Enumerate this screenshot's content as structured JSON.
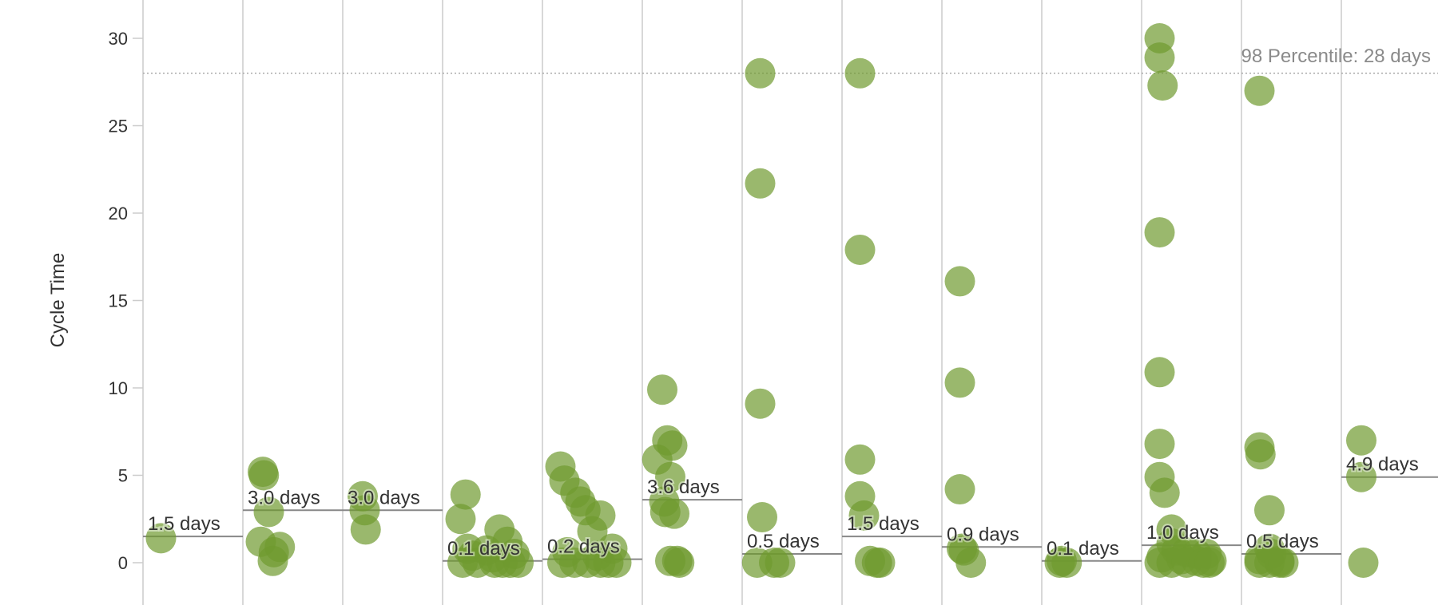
{
  "chart_data": {
    "type": "scatter",
    "title": "",
    "xlabel": "",
    "ylabel": "Cycle Time",
    "ylim": [
      -1,
      33
    ],
    "yticks": [
      0,
      5,
      10,
      15,
      20,
      25,
      30
    ],
    "grid": true,
    "colors": {
      "point": "#6f9a2f",
      "median_line": "#888888",
      "percentile_line": "#aaaaaa",
      "column_divider": "#d8d8d8",
      "tick": "#cccccc"
    },
    "percentile": {
      "value": 28,
      "label": "98 Percentile: 28 days"
    },
    "columns": [
      {
        "median": 1.5,
        "median_label": "1.5 days",
        "points": [
          [
            0.18,
            1.4
          ]
        ]
      },
      {
        "median": 3.0,
        "median_label": "3.0 days",
        "points": [
          [
            0.2,
            5.2
          ],
          [
            0.21,
            5.0
          ],
          [
            0.26,
            2.9
          ],
          [
            0.18,
            1.2
          ],
          [
            0.37,
            0.9
          ],
          [
            0.31,
            0.6
          ],
          [
            0.3,
            0.1
          ]
        ]
      },
      {
        "median": 3.0,
        "median_label": "3.0 days",
        "points": [
          [
            0.2,
            3.8
          ],
          [
            0.22,
            3.0
          ],
          [
            0.23,
            1.9
          ]
        ]
      },
      {
        "median": 0.1,
        "median_label": "0.1 days",
        "points": [
          [
            0.23,
            3.9
          ],
          [
            0.18,
            2.5
          ],
          [
            0.57,
            1.9
          ],
          [
            0.65,
            1.2
          ],
          [
            0.25,
            0.8
          ],
          [
            0.44,
            0.7
          ],
          [
            0.72,
            0.5
          ],
          [
            0.3,
            0.4
          ],
          [
            0.5,
            0.3
          ],
          [
            0.2,
            0.0
          ],
          [
            0.35,
            0.0
          ],
          [
            0.52,
            0.0
          ],
          [
            0.6,
            0.0
          ],
          [
            0.68,
            0.0
          ],
          [
            0.76,
            0.0
          ]
        ]
      },
      {
        "median": 0.2,
        "median_label": "0.2 days",
        "points": [
          [
            0.18,
            5.5
          ],
          [
            0.22,
            4.7
          ],
          [
            0.33,
            4.0
          ],
          [
            0.38,
            3.5
          ],
          [
            0.43,
            3.0
          ],
          [
            0.58,
            2.7
          ],
          [
            0.5,
            1.8
          ],
          [
            0.7,
            0.8
          ],
          [
            0.25,
            0.6
          ],
          [
            0.55,
            0.4
          ],
          [
            0.2,
            0.0
          ],
          [
            0.32,
            0.0
          ],
          [
            0.45,
            0.0
          ],
          [
            0.58,
            0.0
          ],
          [
            0.66,
            0.0
          ],
          [
            0.74,
            0.0
          ]
        ]
      },
      {
        "median": 3.6,
        "median_label": "3.6 days",
        "points": [
          [
            0.2,
            9.9
          ],
          [
            0.25,
            7.0
          ],
          [
            0.3,
            6.7
          ],
          [
            0.15,
            5.9
          ],
          [
            0.28,
            4.9
          ],
          [
            0.22,
            3.5
          ],
          [
            0.23,
            2.9
          ],
          [
            0.32,
            2.8
          ],
          [
            0.28,
            0.1
          ],
          [
            0.35,
            0.1
          ],
          [
            0.37,
            0.0
          ]
        ]
      },
      {
        "median": 0.5,
        "median_label": "0.5 days",
        "points": [
          [
            0.18,
            28.0
          ],
          [
            0.18,
            21.7
          ],
          [
            0.18,
            9.1
          ],
          [
            0.2,
            2.6
          ],
          [
            0.15,
            0.0
          ],
          [
            0.32,
            0.0
          ],
          [
            0.38,
            0.0
          ]
        ]
      },
      {
        "median": 1.5,
        "median_label": "1.5 days",
        "points": [
          [
            0.18,
            28.0
          ],
          [
            0.18,
            17.9
          ],
          [
            0.18,
            5.9
          ],
          [
            0.18,
            3.8
          ],
          [
            0.22,
            2.7
          ],
          [
            0.28,
            0.1
          ],
          [
            0.35,
            0.0
          ],
          [
            0.38,
            0.0
          ]
        ]
      },
      {
        "median": 0.9,
        "median_label": "0.9 days",
        "points": [
          [
            0.18,
            16.1
          ],
          [
            0.18,
            10.3
          ],
          [
            0.18,
            4.2
          ],
          [
            0.2,
            0.8
          ],
          [
            0.22,
            0.7
          ],
          [
            0.29,
            0.0
          ]
        ]
      },
      {
        "median": 0.1,
        "median_label": "0.1 days",
        "points": [
          [
            0.2,
            0.1
          ],
          [
            0.25,
            0.0
          ],
          [
            0.18,
            0.0
          ]
        ]
      },
      {
        "median": 1.0,
        "median_label": "1.0 days",
        "points": [
          [
            0.18,
            30.0
          ],
          [
            0.18,
            28.9
          ],
          [
            0.21,
            27.3
          ],
          [
            0.18,
            18.9
          ],
          [
            0.18,
            10.9
          ],
          [
            0.18,
            6.8
          ],
          [
            0.18,
            4.9
          ],
          [
            0.23,
            4.0
          ],
          [
            0.3,
            1.9
          ],
          [
            0.3,
            1.1
          ],
          [
            0.35,
            0.7
          ],
          [
            0.45,
            0.6
          ],
          [
            0.55,
            0.5
          ],
          [
            0.65,
            0.5
          ],
          [
            0.2,
            0.3
          ],
          [
            0.4,
            0.2
          ],
          [
            0.55,
            0.1
          ],
          [
            0.7,
            0.1
          ],
          [
            0.18,
            0.0
          ],
          [
            0.3,
            0.0
          ],
          [
            0.45,
            0.0
          ],
          [
            0.62,
            0.0
          ],
          [
            0.68,
            0.0
          ]
        ]
      },
      {
        "median": 0.5,
        "median_label": "0.5 days",
        "points": [
          [
            0.18,
            27.0
          ],
          [
            0.18,
            6.6
          ],
          [
            0.19,
            6.2
          ],
          [
            0.28,
            3.0
          ],
          [
            0.28,
            0.8
          ],
          [
            0.3,
            0.5
          ],
          [
            0.18,
            0.2
          ],
          [
            0.38,
            0.1
          ],
          [
            0.18,
            0.0
          ],
          [
            0.28,
            0.0
          ],
          [
            0.38,
            0.0
          ],
          [
            0.42,
            0.0
          ]
        ]
      },
      {
        "median": 4.9,
        "median_label": "4.9 days",
        "points": [
          [
            0.2,
            7.0
          ],
          [
            0.2,
            4.9
          ],
          [
            0.22,
            0.0
          ]
        ]
      }
    ]
  }
}
